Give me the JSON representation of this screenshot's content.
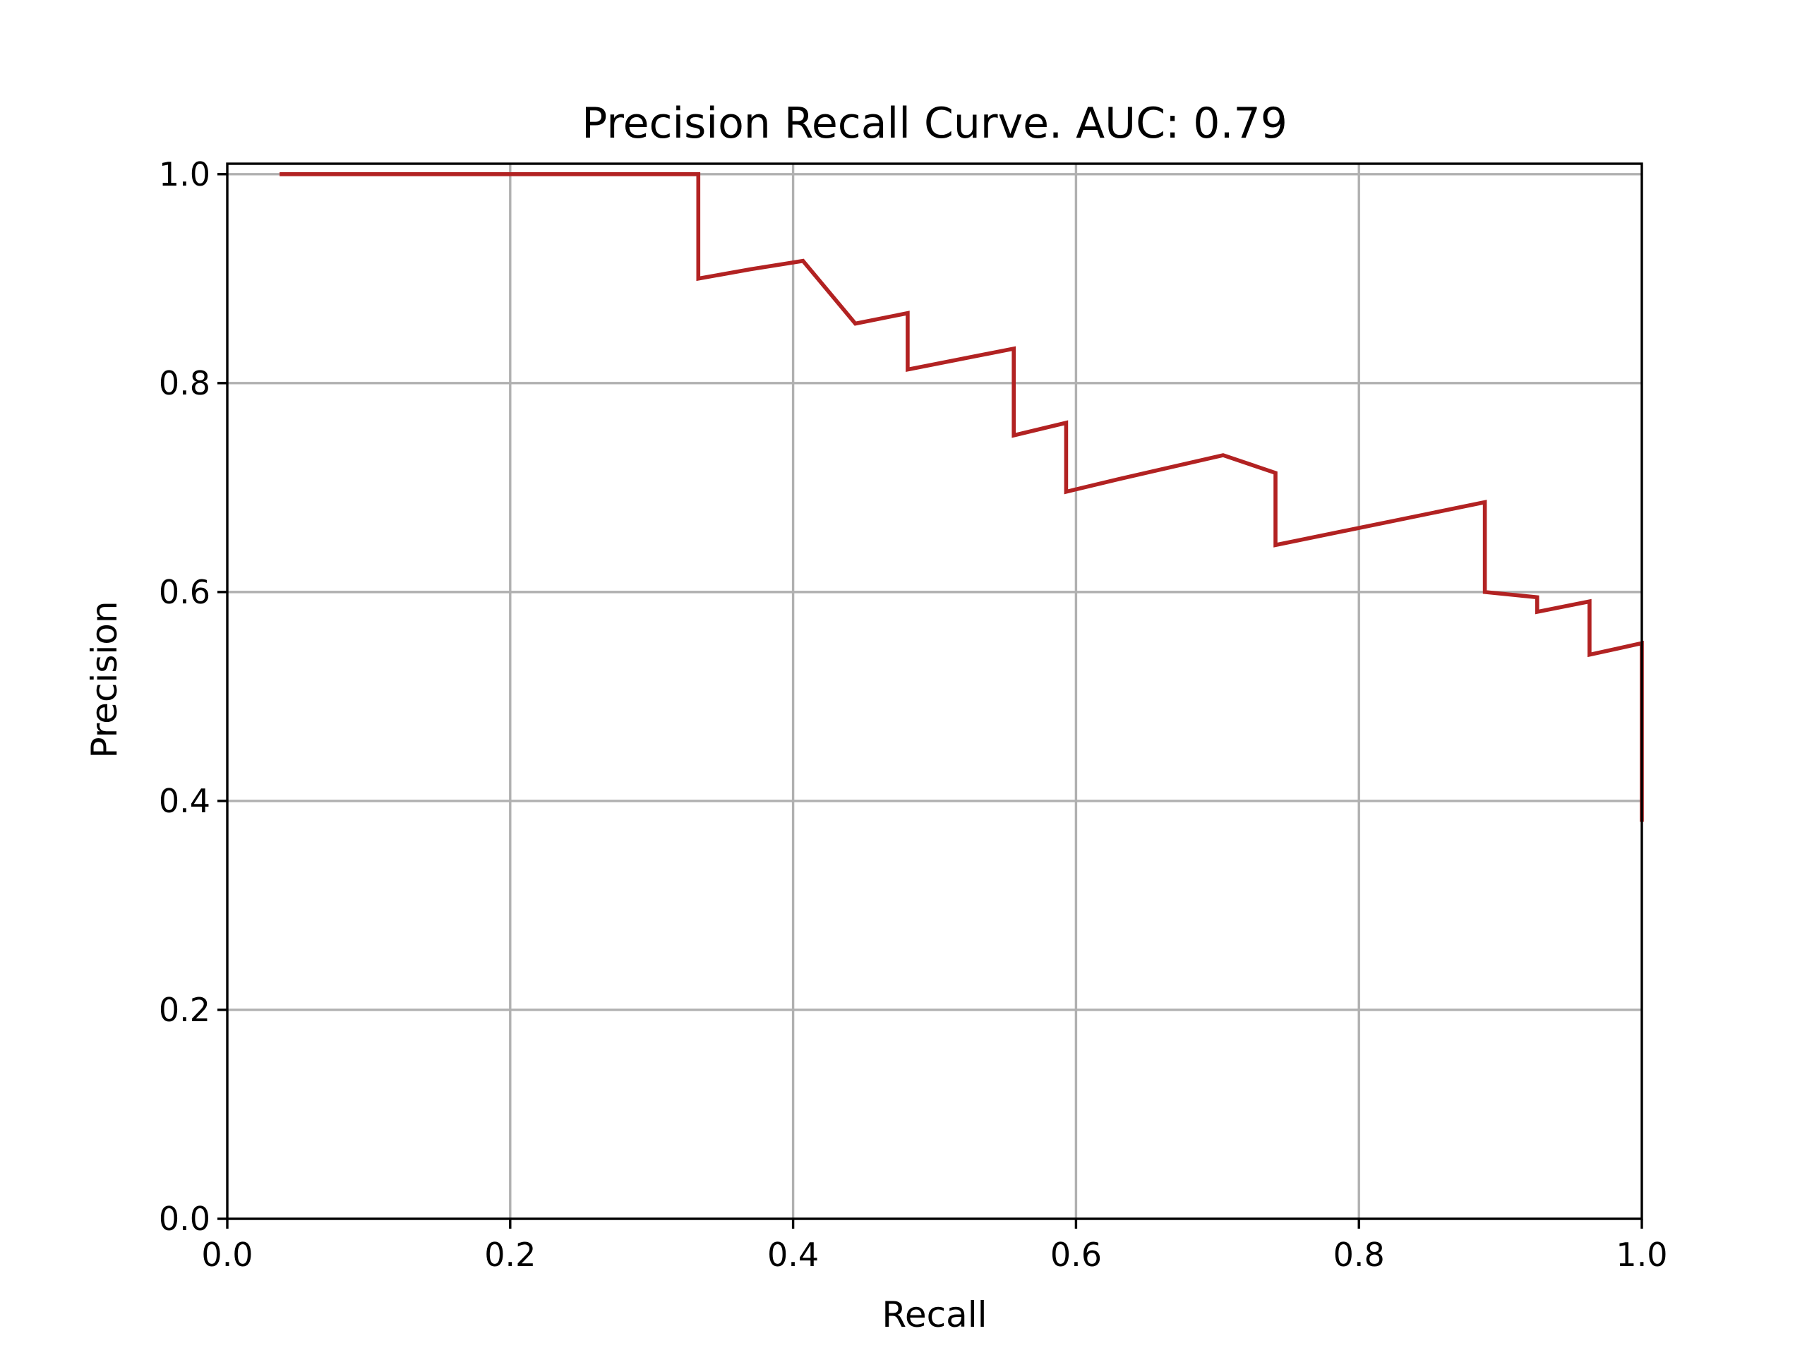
{
  "chart_data": {
    "type": "line",
    "title": "Precision Recall Curve. AUC: 0.79",
    "xlabel": "Recall",
    "ylabel": "Precision",
    "xlim": [
      0.0,
      1.0
    ],
    "ylim": [
      0.0,
      1.01
    ],
    "xticks": [
      "0.0",
      "0.2",
      "0.4",
      "0.6",
      "0.8",
      "1.0"
    ],
    "yticks": [
      "0.0",
      "0.2",
      "0.4",
      "0.6",
      "0.8",
      "1.0"
    ],
    "xtick_values": [
      0.0,
      0.2,
      0.4,
      0.6,
      0.8,
      1.0
    ],
    "ytick_values": [
      0.0,
      0.2,
      0.4,
      0.6,
      0.8,
      1.0
    ],
    "grid": true,
    "series": [
      {
        "color": "#b22222",
        "x": [
          0.037,
          0.333,
          0.333,
          0.37,
          0.407,
          0.444,
          0.481,
          0.481,
          0.556,
          0.556,
          0.593,
          0.593,
          0.63,
          0.704,
          0.741,
          0.741,
          0.889,
          0.889,
          0.926,
          0.926,
          0.963,
          0.963,
          1.0,
          1.0
        ],
        "y": [
          1.0,
          1.0,
          0.9,
          0.909,
          0.917,
          0.857,
          0.867,
          0.813,
          0.833,
          0.75,
          0.762,
          0.696,
          0.708,
          0.731,
          0.714,
          0.645,
          0.686,
          0.6,
          0.595,
          0.581,
          0.591,
          0.54,
          0.551,
          0.38
        ]
      }
    ]
  }
}
